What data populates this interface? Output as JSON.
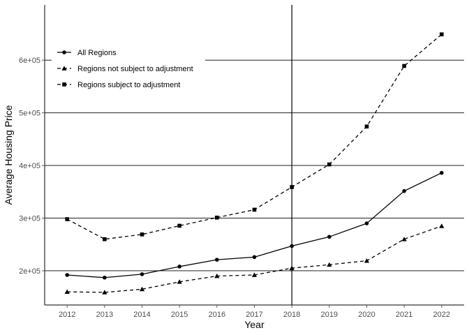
{
  "chart_data": {
    "type": "line",
    "xlabel": "Year",
    "ylabel": "Average Housing Price",
    "x": [
      2012,
      2013,
      2014,
      2015,
      2016,
      2017,
      2018,
      2019,
      2020,
      2021,
      2022
    ],
    "xlim": [
      2011.4,
      2022.6
    ],
    "ylim": [
      135000,
      705000
    ],
    "y_ticks": [
      200000,
      300000,
      400000,
      500000,
      600000
    ],
    "y_tick_labels": [
      "2e+05",
      "3e+05",
      "4e+05",
      "5e+05",
      "6e+05"
    ],
    "vertical_line_x": 2018,
    "grid": "horizontal major lines only",
    "legend_position": "top-left",
    "series": [
      {
        "name": "All Regions",
        "linestyle": "solid",
        "marker": "circle",
        "values": [
          192000,
          187000,
          193500,
          208000,
          221000,
          226000,
          247000,
          264500,
          290000,
          351500,
          386000
        ]
      },
      {
        "name": "Regions not subject to adjustment",
        "linestyle": "dashed",
        "marker": "triangle",
        "values": [
          160000,
          159000,
          165000,
          179000,
          190000,
          192000,
          205000,
          211500,
          219000,
          260000,
          285000
        ]
      },
      {
        "name": "Regions subject to adjustment",
        "linestyle": "dashed",
        "marker": "square",
        "values": [
          298000,
          260000,
          269000,
          285500,
          301000,
          316000,
          359000,
          402000,
          474000,
          589000,
          649000
        ]
      }
    ],
    "colors": {
      "lines": "#000000",
      "axis_text": "#4d4d4d",
      "background": "#ffffff"
    }
  }
}
